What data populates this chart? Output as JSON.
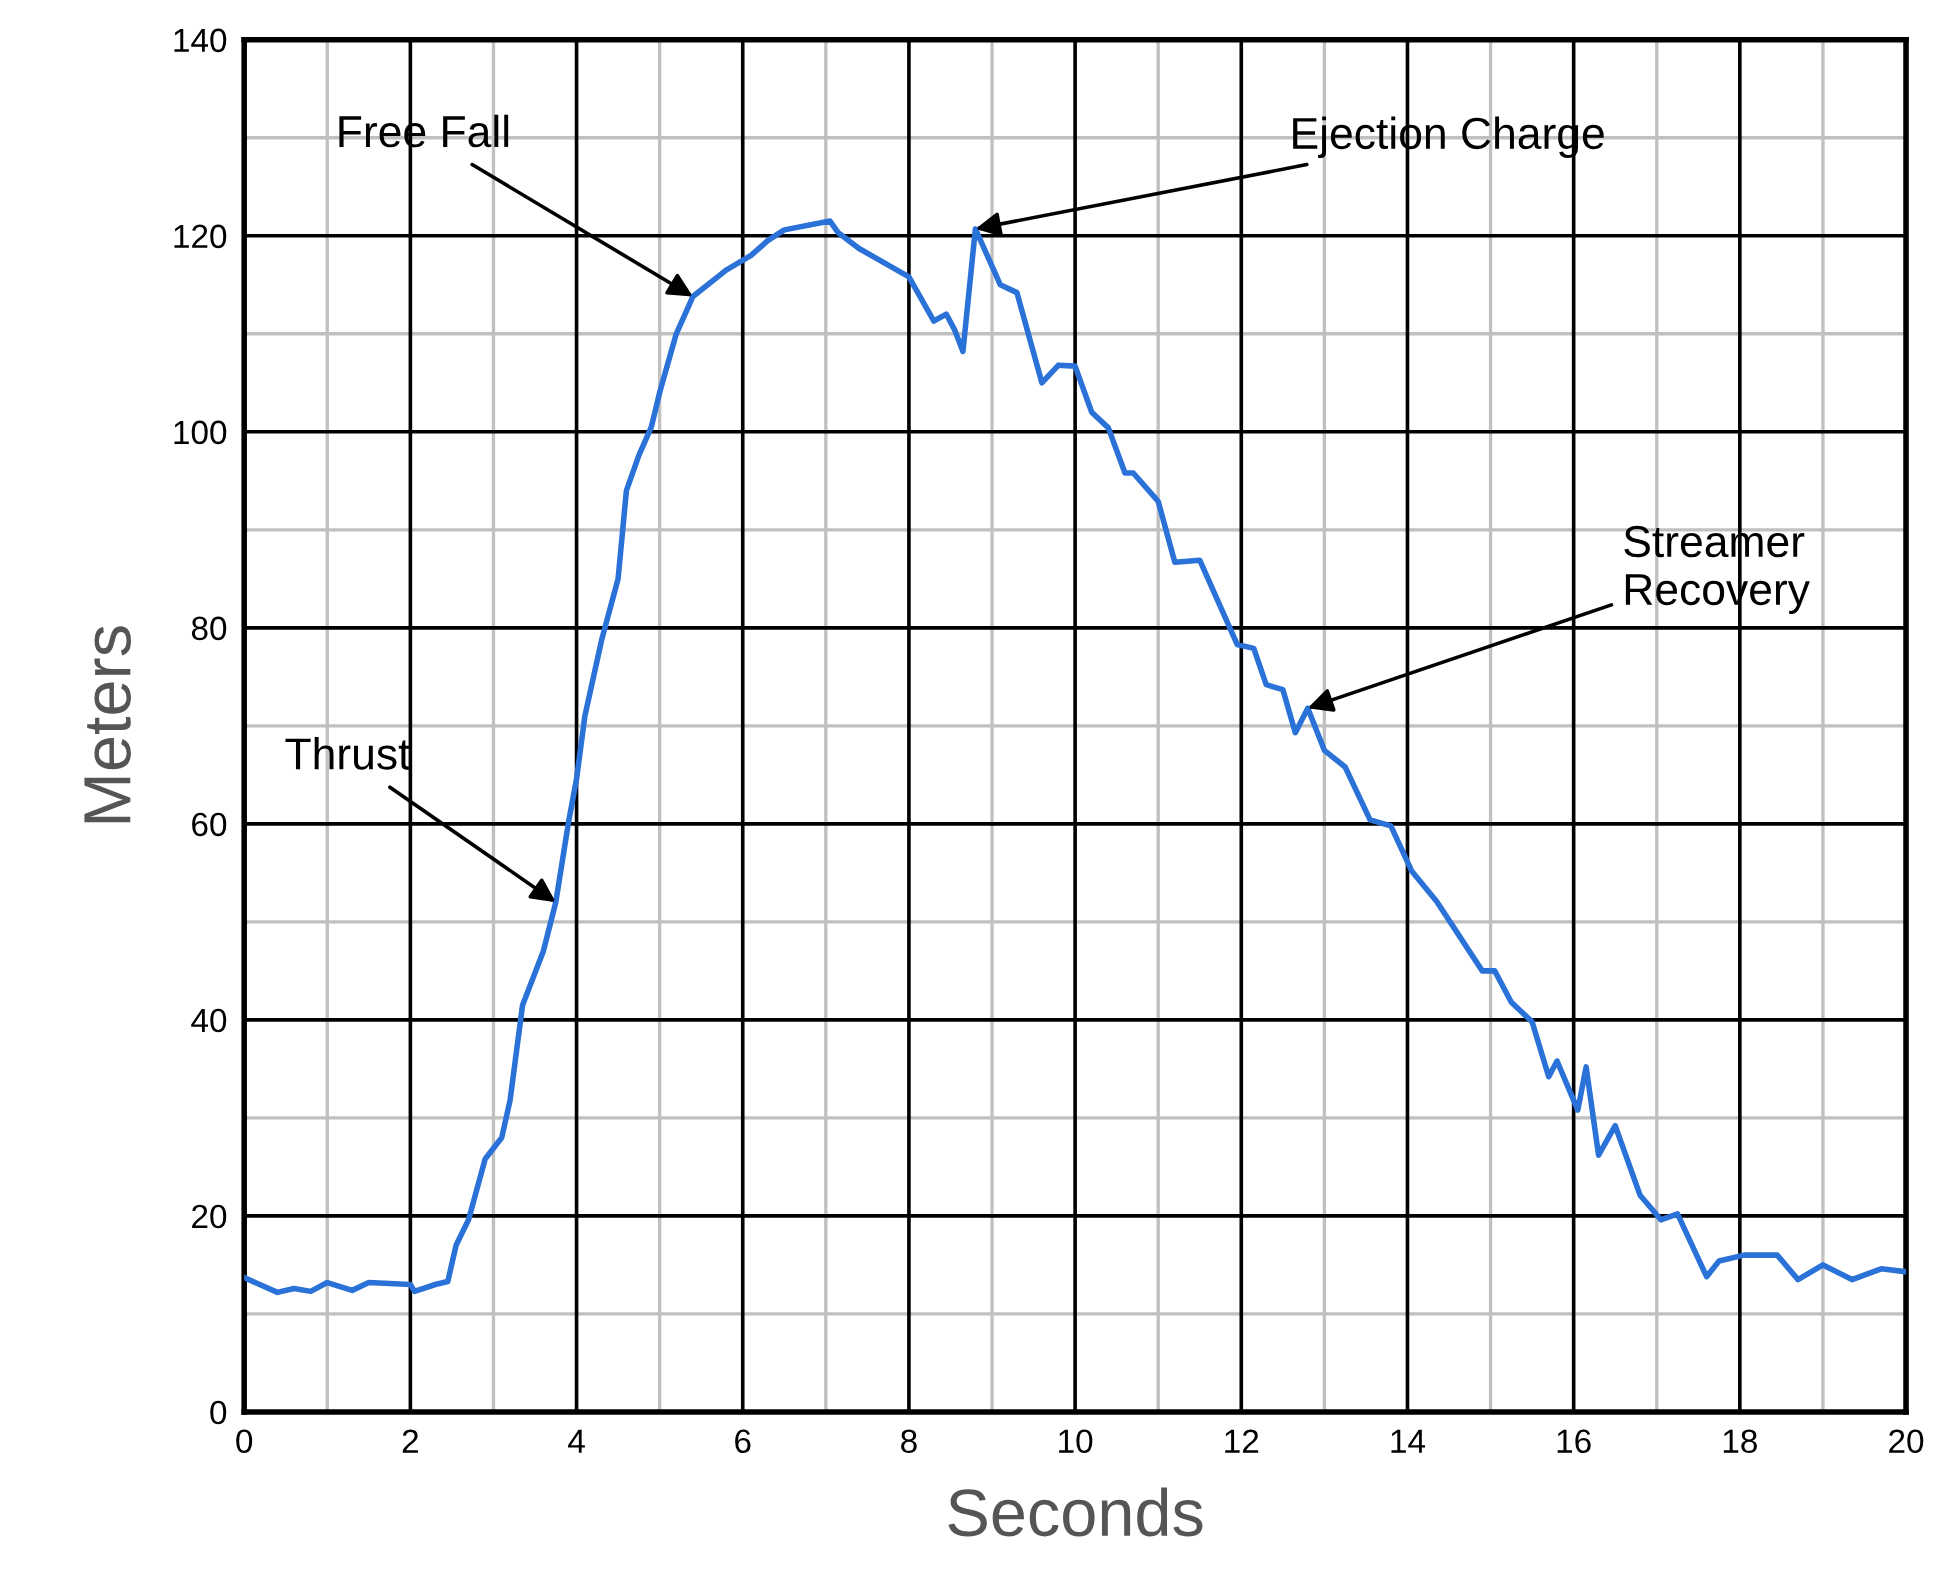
{
  "chart_data": {
    "type": "line",
    "xlabel": "Seconds",
    "ylabel": "Meters",
    "xlim": [
      0,
      20
    ],
    "ylim": [
      0,
      140
    ],
    "xticks": [
      0,
      2,
      4,
      6,
      8,
      10,
      12,
      14,
      16,
      18,
      20
    ],
    "yticks": [
      0,
      20,
      40,
      60,
      80,
      100,
      120,
      140
    ],
    "grid": true,
    "marker": "none",
    "line_style": "solid",
    "series": [
      {
        "color": "#2a72d8",
        "x": [
          0,
          0.4,
          0.6,
          0.8,
          1.0,
          1.3,
          1.5,
          2.0,
          2.05,
          2.3,
          2.45,
          2.55,
          2.7,
          2.9,
          3.1,
          3.2,
          3.35,
          3.6,
          3.75,
          3.9,
          4.0,
          4.1,
          4.3,
          4.5,
          4.6,
          4.75,
          4.9,
          5.0,
          5.2,
          5.4,
          5.8,
          6.1,
          6.3,
          6.5,
          7.05,
          7.15,
          7.4,
          8.0,
          8.3,
          8.45,
          8.55,
          8.65,
          8.8,
          9.1,
          9.3,
          9.6,
          9.8,
          10.0,
          10.2,
          10.4,
          10.6,
          10.7,
          11.0,
          11.2,
          11.5,
          11.95,
          12.15,
          12.3,
          12.5,
          12.65,
          12.8,
          13.0,
          13.25,
          13.55,
          13.8,
          14.05,
          14.35,
          14.9,
          15.05,
          15.25,
          15.5,
          15.7,
          15.8,
          16.05,
          16.15,
          16.3,
          16.5,
          16.8,
          17.05,
          17.25,
          17.6,
          17.75,
          18.05,
          18.45,
          18.7,
          19.0,
          19.35,
          19.7,
          20
        ],
        "values": [
          13.7,
          12.2,
          12.6,
          12.3,
          13.2,
          12.4,
          13.2,
          13,
          12.3,
          13,
          13.3,
          17,
          19.6,
          25.8,
          28,
          31.8,
          41.5,
          47,
          52,
          60,
          64.6,
          71,
          78.7,
          85,
          94,
          97.6,
          100.5,
          104,
          110,
          113.8,
          116.5,
          118,
          119.5,
          120.6,
          121.5,
          120.3,
          118.7,
          115.8,
          111.3,
          112,
          110.4,
          108.2,
          120.7,
          115,
          114.2,
          105,
          106.8,
          106.7,
          102,
          100.4,
          95.8,
          95.8,
          92.9,
          86.7,
          86.9,
          78.3,
          77.9,
          74.2,
          73.7,
          69.3,
          71.8,
          67.5,
          65.8,
          60.4,
          59.8,
          55.2,
          52.1,
          45,
          45,
          41.8,
          39.8,
          34.2,
          35.8,
          30.8,
          35.2,
          26.2,
          29.2,
          22.1,
          19.6,
          20.2,
          13.8,
          15.4,
          16,
          16,
          13.5,
          15,
          13.5,
          14.6,
          14.3
        ]
      }
    ],
    "annotations": [
      {
        "text": "Free Fall",
        "x": 5.4,
        "y": 113.8
      },
      {
        "text": "Ejection Charge",
        "x": 8.8,
        "y": 120.7
      },
      {
        "text": "Thrust",
        "x": 3.75,
        "y": 52
      },
      {
        "text": "Streamer\nRecovery",
        "x": 12.8,
        "y": 71.8
      }
    ]
  }
}
